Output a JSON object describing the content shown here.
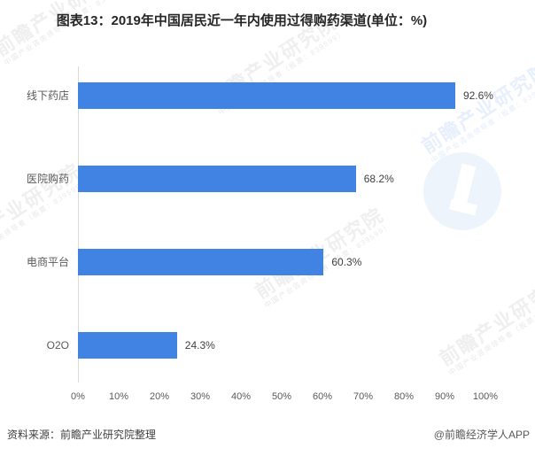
{
  "title": "图表13：2019年中国居民近一年内使用过得购药渠道(单位：%)",
  "chart_data": {
    "type": "bar",
    "orientation": "horizontal",
    "title": "图表13：2019年中国居民近一年内使用过得购药渠道(单位：%)",
    "categories": [
      "线下药店",
      "医院购药",
      "电商平台",
      "O2O"
    ],
    "values": [
      92.6,
      68.2,
      60.3,
      24.3
    ],
    "value_labels": [
      "92.6%",
      "68.2%",
      "60.3%",
      "24.3%"
    ],
    "x_ticks": [
      "0%",
      "10%",
      "20%",
      "30%",
      "40%",
      "50%",
      "60%",
      "70%",
      "80%",
      "90%",
      "100%"
    ],
    "xlim": [
      0,
      100
    ],
    "grid": false,
    "legend": "none",
    "bar_color": "#4183e3",
    "axis_line_color": "#d9d9d9"
  },
  "footer": {
    "source": "资料来源：前瞻产业研究院整理",
    "credit": "@前瞻经济学人APP"
  },
  "watermark": {
    "brand_large": "前瞻产业研究院",
    "brand_small": "中国产业咨询领导者（股票：839599）",
    "logo_color": "#4183e3"
  }
}
